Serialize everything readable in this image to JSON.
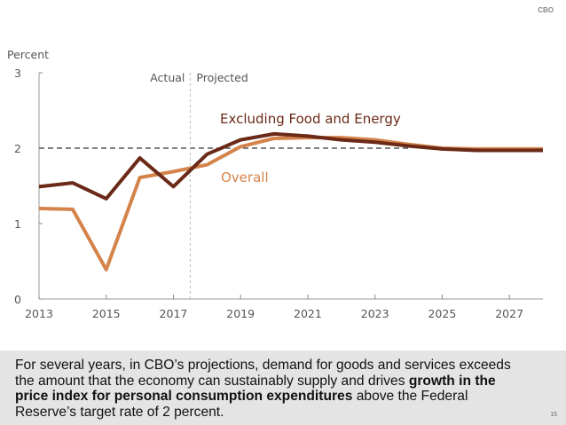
{
  "header": {
    "badge": "CBO"
  },
  "chart_data": {
    "type": "line",
    "title": "",
    "ylabel": "Percent",
    "xlabel": "",
    "ylim": [
      0,
      3
    ],
    "xlim": [
      2013,
      2028
    ],
    "yticks": [
      0,
      1,
      2,
      3
    ],
    "xticks": [
      2013,
      2015,
      2017,
      2019,
      2021,
      2023,
      2025,
      2027
    ],
    "grid": false,
    "reference_line": {
      "value": 2,
      "style": "dashed",
      "label": ""
    },
    "divider": {
      "x": 2017.5,
      "left_label": "Actual",
      "right_label": "Projected"
    },
    "x": [
      2013,
      2014,
      2015,
      2016,
      2017,
      2018,
      2019,
      2020,
      2021,
      2022,
      2023,
      2024,
      2025,
      2026,
      2027,
      2028
    ],
    "series": [
      {
        "name": "Overall",
        "color": "#d4844a",
        "values": [
          1.2,
          1.19,
          0.39,
          1.61,
          1.69,
          1.78,
          2.02,
          2.13,
          2.14,
          2.14,
          2.11,
          2.05,
          2.0,
          1.99,
          1.99,
          1.99
        ]
      },
      {
        "name": "Excluding Food and Energy",
        "color": "#6b2a17",
        "values": [
          1.49,
          1.54,
          1.33,
          1.87,
          1.49,
          1.92,
          2.11,
          2.19,
          2.16,
          2.11,
          2.08,
          2.03,
          1.99,
          1.97,
          1.97,
          1.97
        ]
      }
    ],
    "legend": "inline-labels"
  },
  "caption": {
    "part1": "For several years, in CBO’s projections, demand for goods and services exceeds the amount that the economy can sustainably supply and drives ",
    "bold": "growth in the price index for personal consumption expenditures",
    "part2": " above the Federal Reserve’s target rate of 2 percent."
  },
  "page_number": "15"
}
